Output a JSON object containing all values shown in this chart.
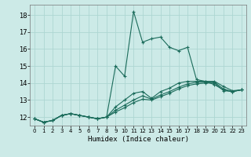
{
  "xlabel": "Humidex (Indice chaleur)",
  "ylabel": "",
  "bg_color": "#cceae7",
  "grid_color": "#add6d2",
  "line_color": "#1a6b5a",
  "xlim": [
    -0.5,
    23.5
  ],
  "ylim": [
    11.5,
    18.6
  ],
  "yticks": [
    12,
    13,
    14,
    15,
    16,
    17,
    18
  ],
  "xticks": [
    0,
    1,
    2,
    3,
    4,
    5,
    6,
    7,
    8,
    9,
    10,
    11,
    12,
    13,
    14,
    15,
    16,
    17,
    18,
    19,
    20,
    21,
    22,
    23
  ],
  "lines": [
    [
      11.9,
      11.7,
      11.8,
      12.1,
      12.2,
      12.1,
      12.0,
      11.9,
      12.0,
      15.0,
      14.4,
      18.2,
      16.4,
      16.6,
      16.7,
      16.1,
      15.9,
      16.1,
      14.2,
      14.1,
      13.9,
      13.6,
      13.5,
      13.6
    ],
    [
      11.9,
      11.7,
      11.8,
      12.1,
      12.2,
      12.1,
      12.0,
      11.9,
      12.0,
      12.6,
      13.0,
      13.4,
      13.5,
      13.1,
      13.5,
      13.7,
      14.0,
      14.1,
      14.1,
      14.1,
      14.1,
      13.8,
      13.55,
      13.6
    ],
    [
      11.9,
      11.7,
      11.8,
      12.1,
      12.2,
      12.1,
      12.0,
      11.9,
      12.0,
      12.4,
      12.7,
      13.0,
      13.25,
      13.05,
      13.3,
      13.5,
      13.75,
      13.95,
      14.05,
      14.05,
      14.05,
      13.65,
      13.5,
      13.6
    ],
    [
      11.9,
      11.7,
      11.8,
      12.1,
      12.2,
      12.1,
      12.0,
      11.9,
      12.0,
      12.3,
      12.55,
      12.85,
      13.05,
      13.0,
      13.2,
      13.4,
      13.65,
      13.85,
      13.95,
      14.0,
      14.0,
      13.55,
      13.5,
      13.6
    ]
  ]
}
